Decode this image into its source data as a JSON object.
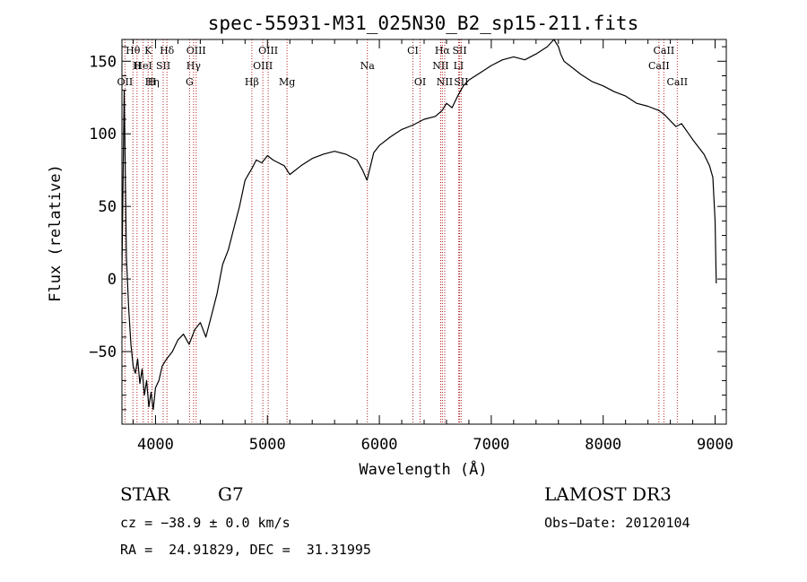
{
  "chart_data": {
    "type": "line",
    "title": "spec-55931-M31_025N30_B2_sp15-211.fits",
    "xlabel": "Wavelength (Å)",
    "ylabel": "Flux (relative)",
    "xlim": [
      3700,
      9100
    ],
    "ylim": [
      -100,
      165
    ],
    "xticks": [
      4000,
      5000,
      6000,
      7000,
      8000,
      9000
    ],
    "yticks": [
      -50,
      0,
      50,
      100,
      150
    ],
    "ytick_labels": [
      "−50",
      "0",
      "50",
      "100",
      "150"
    ],
    "series": [
      {
        "name": "flux",
        "x": [
          3700,
          3720,
          3740,
          3760,
          3780,
          3800,
          3820,
          3840,
          3860,
          3880,
          3900,
          3920,
          3940,
          3960,
          3980,
          4000,
          4030,
          4060,
          4100,
          4150,
          4200,
          4250,
          4300,
          4350,
          4400,
          4450,
          4500,
          4550,
          4600,
          4650,
          4700,
          4750,
          4800,
          4830,
          4860,
          4900,
          4950,
          5000,
          5050,
          5100,
          5150,
          5200,
          5300,
          5400,
          5500,
          5600,
          5700,
          5800,
          5850,
          5890,
          5950,
          6000,
          6100,
          6200,
          6300,
          6400,
          6500,
          6560,
          6600,
          6650,
          6700,
          6750,
          6800,
          6900,
          7000,
          7100,
          7200,
          7300,
          7400,
          7500,
          7560,
          7600,
          7620,
          7650,
          7700,
          7800,
          7900,
          8000,
          8100,
          8200,
          8300,
          8400,
          8500,
          8550,
          8600,
          8650,
          8700,
          8800,
          8900,
          8950,
          8980,
          9000,
          9010
        ],
        "values": [
          5,
          130,
          15,
          -20,
          -45,
          -60,
          -65,
          -55,
          -72,
          -62,
          -80,
          -70,
          -88,
          -78,
          -90,
          -75,
          -70,
          -60,
          -55,
          -50,
          -42,
          -38,
          -45,
          -35,
          -30,
          -40,
          -25,
          -10,
          10,
          20,
          35,
          50,
          68,
          72,
          76,
          82,
          80,
          85,
          82,
          80,
          78,
          72,
          78,
          83,
          86,
          88,
          86,
          82,
          75,
          68,
          87,
          92,
          98,
          103,
          106,
          110,
          112,
          116,
          121,
          118,
          126,
          133,
          137,
          142,
          147,
          151,
          153,
          151,
          155,
          160,
          165,
          160,
          155,
          150,
          147,
          141,
          136,
          133,
          129,
          126,
          121,
          119,
          116,
          113,
          109,
          105,
          107,
          96,
          86,
          78,
          70,
          40,
          -3
        ]
      }
    ],
    "spectral_lines": [
      {
        "name": "Hθ",
        "wave": 3798,
        "row": 0
      },
      {
        "name": "K",
        "wave": 3934,
        "row": 0
      },
      {
        "name": "Hδ",
        "wave": 4102,
        "row": 0
      },
      {
        "name": "OIII",
        "wave": 4363,
        "row": 0
      },
      {
        "name": "OIII",
        "wave": 5007,
        "row": 0
      },
      {
        "name": "CI",
        "wave": 6300,
        "row": 0
      },
      {
        "name": "Hα",
        "wave": 6563,
        "row": 0
      },
      {
        "name": "SII",
        "wave": 6717,
        "row": 0
      },
      {
        "name": "CaII",
        "wave": 8542,
        "row": 0
      },
      {
        "name": "H",
        "wave": 3835,
        "row": 1
      },
      {
        "name": "HeI",
        "wave": 3889,
        "row": 1
      },
      {
        "name": "SII",
        "wave": 4069,
        "row": 1
      },
      {
        "name": "Hγ",
        "wave": 4340,
        "row": 1
      },
      {
        "name": "OIII",
        "wave": 4959,
        "row": 1
      },
      {
        "name": "Na",
        "wave": 5893,
        "row": 1
      },
      {
        "name": "NII",
        "wave": 6548,
        "row": 1
      },
      {
        "name": "LI",
        "wave": 6708,
        "row": 1
      },
      {
        "name": "CaII",
        "wave": 8498,
        "row": 1
      },
      {
        "name": "OII",
        "wave": 3727,
        "row": 2
      },
      {
        "name": "Hη",
        "wave": 3970,
        "row": 2
      },
      {
        "name": "H",
        "wave": 3968,
        "row": 2
      },
      {
        "name": "G",
        "wave": 4304,
        "row": 2
      },
      {
        "name": "Hβ",
        "wave": 4861,
        "row": 2
      },
      {
        "name": "Mg",
        "wave": 5175,
        "row": 2
      },
      {
        "name": "OI",
        "wave": 6364,
        "row": 2
      },
      {
        "name": "NII",
        "wave": 6584,
        "row": 2
      },
      {
        "name": "SII",
        "wave": 6731,
        "row": 2
      },
      {
        "name": "CaII",
        "wave": 8662,
        "row": 2
      }
    ],
    "colors": {
      "spectrum": "#000000",
      "line_marker": "#b22222",
      "axes": "#000000"
    }
  },
  "info": {
    "class_label": "STAR",
    "subclass": "G7",
    "survey": "LAMOST DR3",
    "cz": "cz = −38.9 ± 0.0 km/s",
    "obs_date": "Obs−Date: 20120104",
    "coords": "RA =  24.91829, DEC =  31.31995"
  }
}
